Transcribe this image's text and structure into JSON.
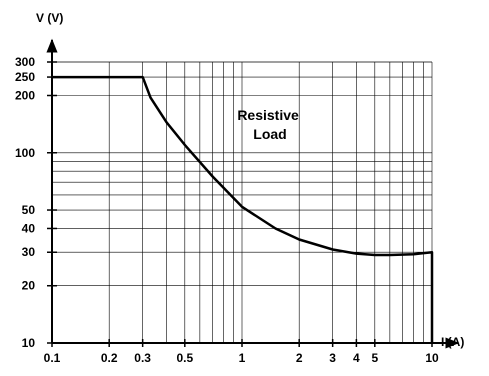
{
  "chart_data": {
    "type": "line",
    "title": "",
    "xlabel": "I (A)",
    "ylabel": "V (V)",
    "xscale": "log",
    "yscale": "log",
    "xlim": [
      0.1,
      10
    ],
    "ylim": [
      10,
      300
    ],
    "grid": true,
    "x_ticks": [
      0.1,
      0.2,
      0.3,
      0.5,
      1,
      2,
      3,
      4,
      5,
      10
    ],
    "x_tick_labels": [
      "0.1",
      "0.2",
      "0.3",
      "0.5",
      "1",
      "2",
      "3",
      "4",
      "5",
      "10"
    ],
    "y_ticks": [
      10,
      20,
      30,
      40,
      50,
      100,
      200,
      250,
      300
    ],
    "y_tick_labels": [
      "10",
      "20",
      "30",
      "40",
      "50",
      "100",
      "200",
      "250",
      "300"
    ],
    "annotation_lines": [
      "Resistive",
      "Load"
    ],
    "series": [
      {
        "color": "#000000",
        "points": [
          [
            0.1,
            250
          ],
          [
            0.3,
            250
          ],
          [
            0.33,
            195
          ],
          [
            0.4,
            145
          ],
          [
            0.5,
            110
          ],
          [
            0.7,
            75
          ],
          [
            1,
            52
          ],
          [
            1.5,
            40
          ],
          [
            2,
            35
          ],
          [
            3,
            31
          ],
          [
            4,
            29.5
          ],
          [
            5,
            29
          ],
          [
            6,
            29
          ],
          [
            8,
            29.3
          ],
          [
            10,
            30
          ],
          [
            10,
            10
          ]
        ]
      }
    ]
  }
}
